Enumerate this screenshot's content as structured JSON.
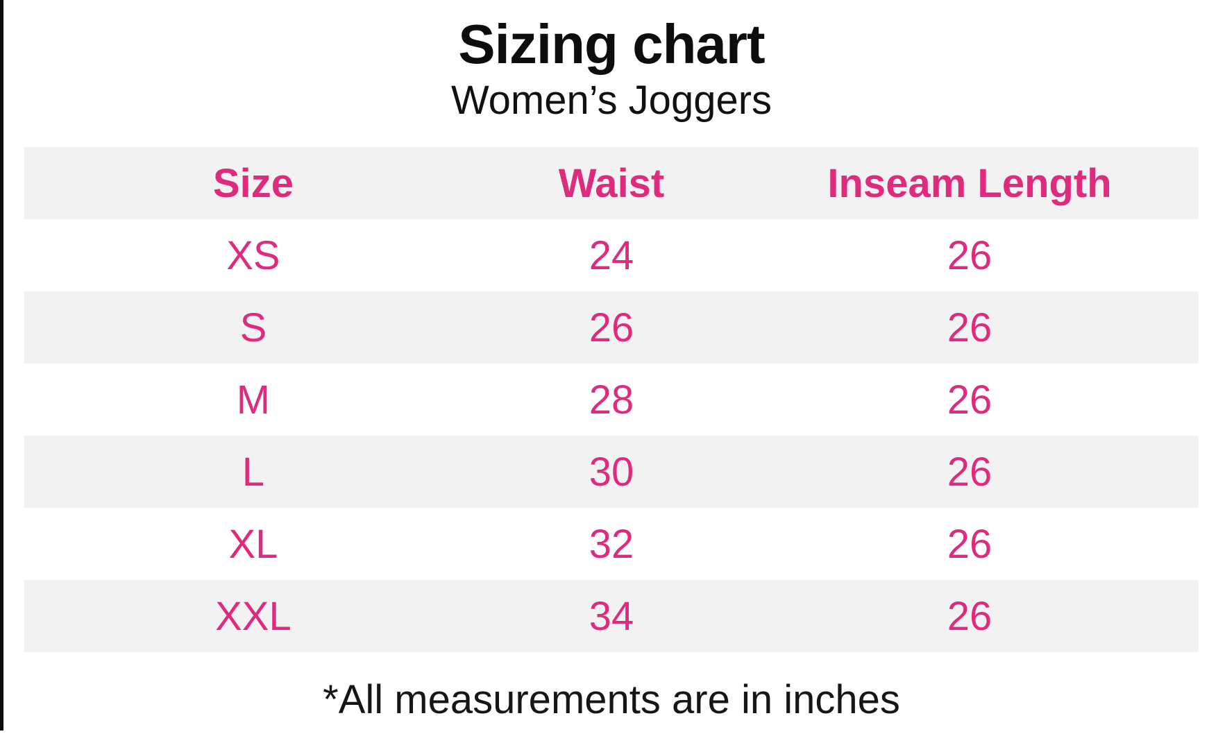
{
  "colors": {
    "accent_pink": "#de2b7e",
    "row_alt_gray": "#f2f2f3",
    "text_black": "#111111",
    "frame_border_black": "#0c0c0c"
  },
  "chart_data": {
    "type": "table",
    "title": "Sizing chart",
    "subtitle": "Women’s Joggers",
    "columns": [
      "Size",
      "Waist",
      "Inseam Length"
    ],
    "rows": [
      [
        "XS",
        "24",
        "26"
      ],
      [
        "S",
        "26",
        "26"
      ],
      [
        "M",
        "28",
        "26"
      ],
      [
        "L",
        "30",
        "26"
      ],
      [
        "XL",
        "32",
        "26"
      ],
      [
        "XXL",
        "34",
        "26"
      ]
    ],
    "footnote": "*All measurements are in inches",
    "layout": {
      "header_row_shaded": true,
      "shaded_rows": [
        "S",
        "L",
        "XXL"
      ],
      "units": "inches"
    }
  }
}
